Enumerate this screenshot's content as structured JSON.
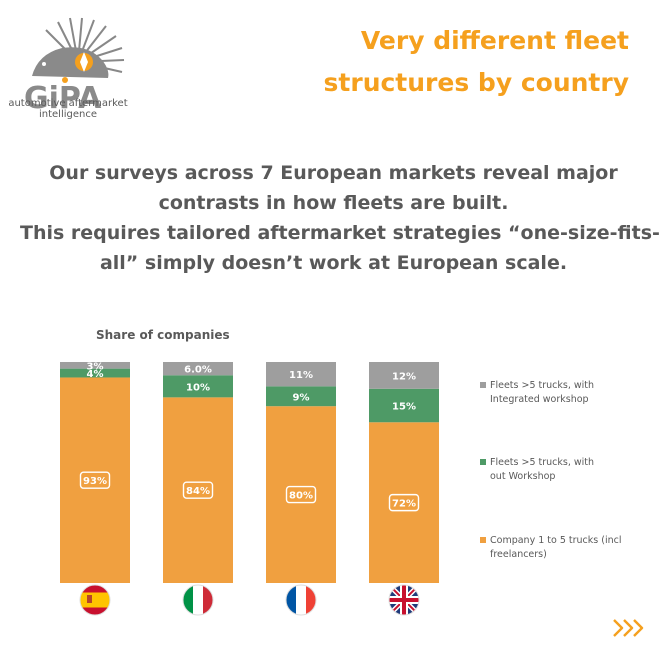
{
  "brand": {
    "name": "GiPA",
    "tagline": [
      "automotive aftermarket",
      "intelligence"
    ]
  },
  "headline": [
    "Very different fleet",
    "structures by country"
  ],
  "intro": [
    "Our surveys across 7 European markets reveal major",
    "contrasts in how fleets are built.",
    "This requires tailored aftermarket strategies “one-size-fits-",
    "all” simply doesn’t work at European scale."
  ],
  "colors": {
    "accent": "#f5a01e",
    "orange": "#f0a040",
    "green": "#4e9a66",
    "gray": "#9e9e9e",
    "text": "#595959"
  },
  "chart_data": {
    "type": "bar",
    "stacked": true,
    "title": "Share of companies",
    "categories": [
      "Spain",
      "Italy",
      "France",
      "UK"
    ],
    "category_icons": [
      "flag-spain-icon",
      "flag-italy-icon",
      "flag-france-icon",
      "flag-uk-icon"
    ],
    "series": [
      {
        "name": "Company 1 to 5 trucks (incl freelancers)",
        "values": [
          93,
          84,
          80,
          72
        ],
        "labels": [
          "93%",
          "84%",
          "80%",
          "72%"
        ],
        "color": "#f0a040"
      },
      {
        "name": "Fleets >5 trucks, without Workshop",
        "values": [
          4,
          10,
          9,
          15
        ],
        "labels": [
          "4%",
          "10%",
          "9%",
          "15%"
        ],
        "color": "#4e9a66"
      },
      {
        "name": "Fleets >5 trucks, with Integrated workshop",
        "values": [
          3,
          6,
          11,
          12
        ],
        "labels": [
          "3%",
          "6.0%",
          "11%",
          "12%"
        ],
        "color": "#9e9e9e"
      }
    ],
    "legend_position": "right",
    "ylim": [
      0,
      100
    ],
    "grid": false
  }
}
